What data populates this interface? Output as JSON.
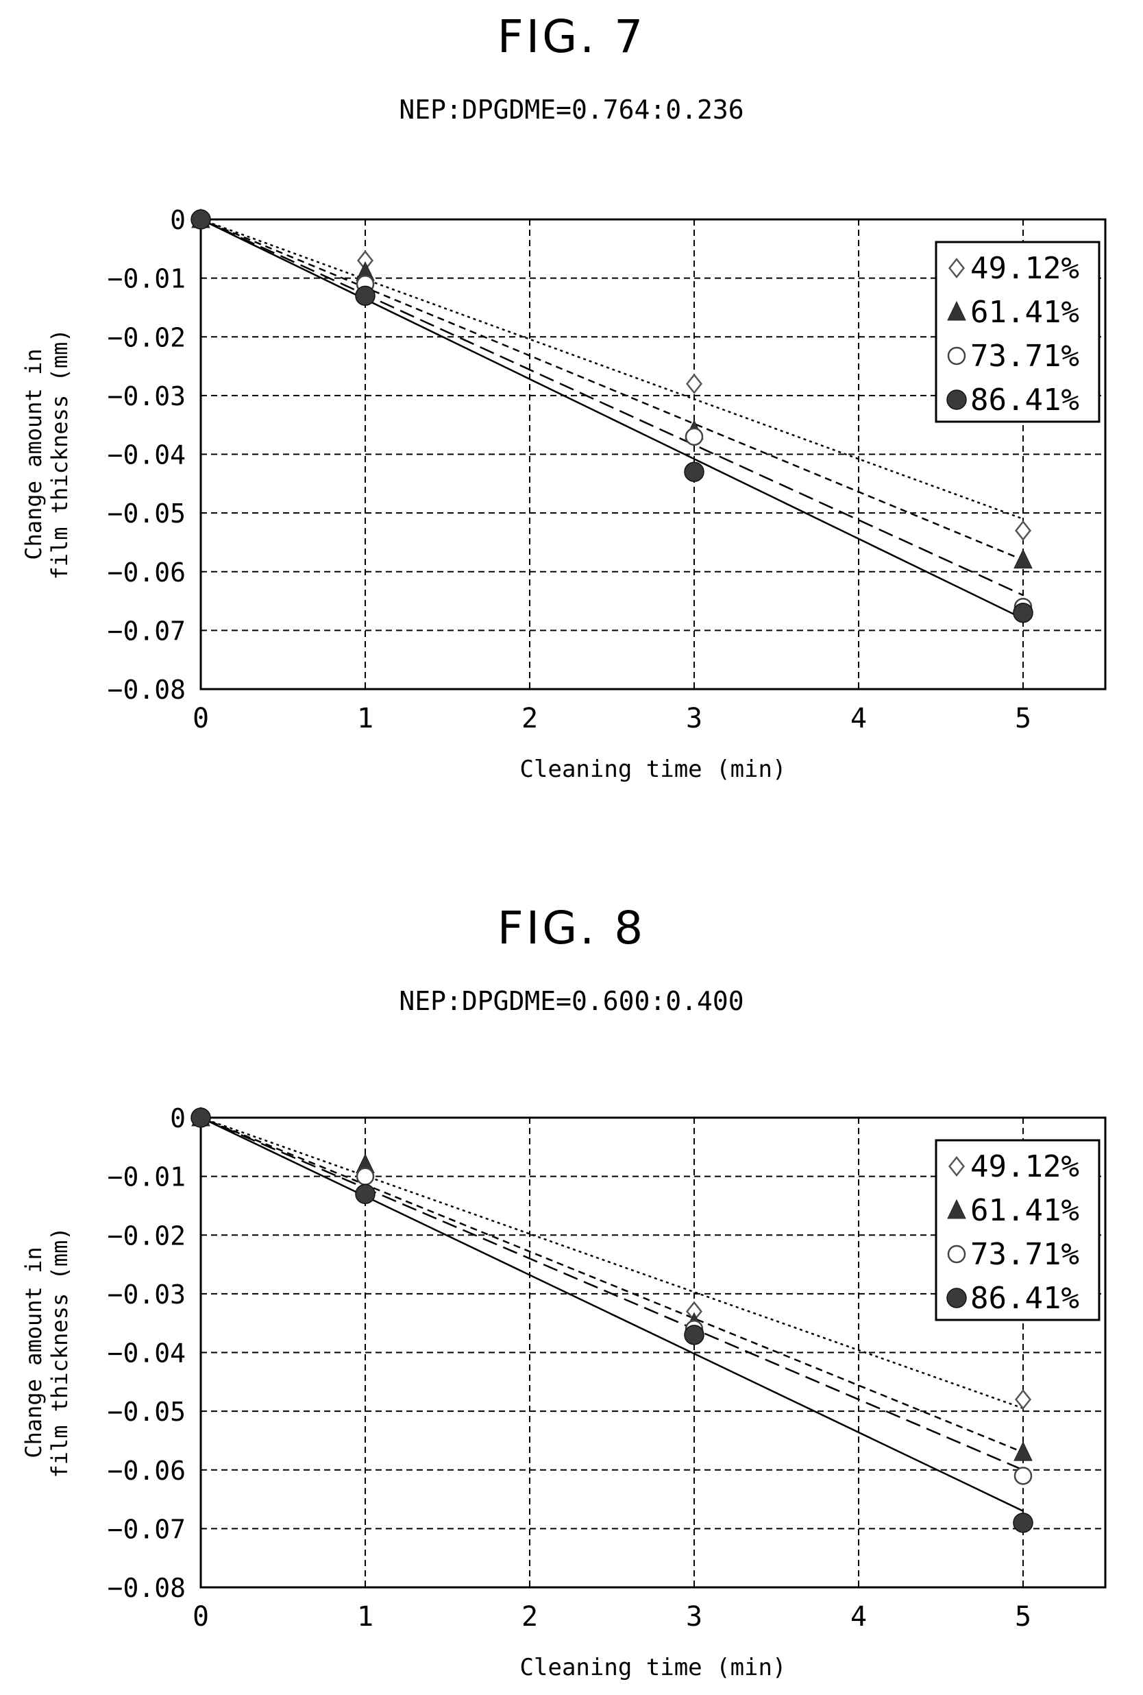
{
  "figures": [
    {
      "title": "FIG. 7",
      "subtitle": "NEP:DPGDME=0.764:0.236"
    },
    {
      "title": "FIG. 8",
      "subtitle": "NEP:DPGDME=0.600:0.400"
    }
  ],
  "chart_data": [
    {
      "type": "scatter",
      "title": "NEP:DPGDME=0.764:0.236",
      "xlabel": "Cleaning time (min)",
      "ylabel": "Change amount in film thickness (mm)",
      "xlim": [
        0,
        5.5
      ],
      "ylim": [
        -0.08,
        0
      ],
      "xticks": [
        0,
        1,
        2,
        3,
        4,
        5
      ],
      "yticks": [
        0,
        -0.01,
        -0.02,
        -0.03,
        -0.04,
        -0.05,
        -0.06,
        -0.07,
        -0.08
      ],
      "ytick_labels": [
        "0",
        "−0.01",
        "−0.02",
        "−0.03",
        "−0.04",
        "−0.05",
        "−0.06",
        "−0.07",
        "−0.08"
      ],
      "grid": true,
      "legend_position": "top-right",
      "series": [
        {
          "name": "49.12%",
          "marker": "open-diamond",
          "line": "dotted",
          "x": [
            0,
            1,
            3,
            5
          ],
          "y": [
            0,
            -0.007,
            -0.028,
            -0.053
          ],
          "fit": [
            0,
            -0.0102
          ]
        },
        {
          "name": "61.41%",
          "marker": "filled-triangle",
          "line": "short-dash",
          "x": [
            0,
            1,
            3,
            5
          ],
          "y": [
            0,
            -0.009,
            -0.036,
            -0.058
          ],
          "fit": [
            0,
            -0.0116
          ]
        },
        {
          "name": "73.71%",
          "marker": "open-circle",
          "line": "long-dash",
          "x": [
            0,
            1,
            3,
            5
          ],
          "y": [
            0,
            -0.011,
            -0.037,
            -0.066
          ],
          "fit": [
            0,
            -0.0128
          ]
        },
        {
          "name": "86.41%",
          "marker": "filled-circle",
          "line": "solid",
          "x": [
            0,
            1,
            3,
            5
          ],
          "y": [
            0,
            -0.013,
            -0.043,
            -0.067
          ],
          "fit": [
            0,
            -0.0136
          ]
        }
      ]
    },
    {
      "type": "scatter",
      "title": "NEP:DPGDME=0.600:0.400",
      "xlabel": "Cleaning time (min)",
      "ylabel": "Change amount in film thickness (mm)",
      "xlim": [
        0,
        5.5
      ],
      "ylim": [
        -0.08,
        0
      ],
      "xticks": [
        0,
        1,
        2,
        3,
        4,
        5
      ],
      "yticks": [
        0,
        -0.01,
        -0.02,
        -0.03,
        -0.04,
        -0.05,
        -0.06,
        -0.07,
        -0.08
      ],
      "ytick_labels": [
        "0",
        "−0.01",
        "−0.02",
        "−0.03",
        "−0.04",
        "−0.05",
        "−0.06",
        "−0.07",
        "−0.08"
      ],
      "grid": true,
      "legend_position": "top-right",
      "series": [
        {
          "name": "49.12%",
          "marker": "open-diamond",
          "line": "dotted",
          "x": [
            0,
            1,
            3,
            5
          ],
          "y": [
            0,
            -0.009,
            -0.033,
            -0.048
          ],
          "fit": [
            0,
            -0.0099
          ]
        },
        {
          "name": "61.41%",
          "marker": "filled-triangle",
          "line": "short-dash",
          "x": [
            0,
            1,
            3,
            5
          ],
          "y": [
            0,
            -0.008,
            -0.035,
            -0.057
          ],
          "fit": [
            0,
            -0.0114
          ]
        },
        {
          "name": "73.71%",
          "marker": "open-circle",
          "line": "long-dash",
          "x": [
            0,
            1,
            3,
            5
          ],
          "y": [
            0,
            -0.01,
            -0.036,
            -0.061
          ],
          "fit": [
            0,
            -0.012
          ]
        },
        {
          "name": "86.41%",
          "marker": "filled-circle",
          "line": "solid",
          "x": [
            0,
            1,
            3,
            5
          ],
          "y": [
            0,
            -0.013,
            -0.037,
            -0.069
          ],
          "fit": [
            0,
            -0.0134
          ]
        }
      ]
    }
  ]
}
